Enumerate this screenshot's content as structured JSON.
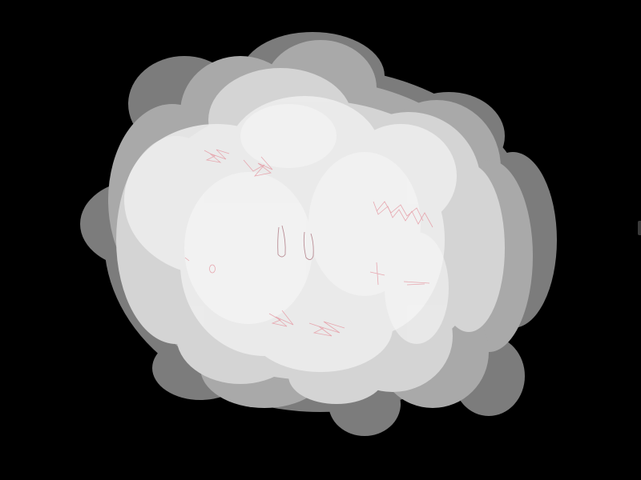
{
  "scene": {
    "description_label": "",
    "background_color": "#000000",
    "cloud_colors": {
      "shadow": "#7a7a7a",
      "mid": "#a8a8a8",
      "light": "#d6d6d6",
      "highlight": "#f2f2f2"
    },
    "scribble_color": "#e8a0a8",
    "eye_color": "#b98d95"
  }
}
